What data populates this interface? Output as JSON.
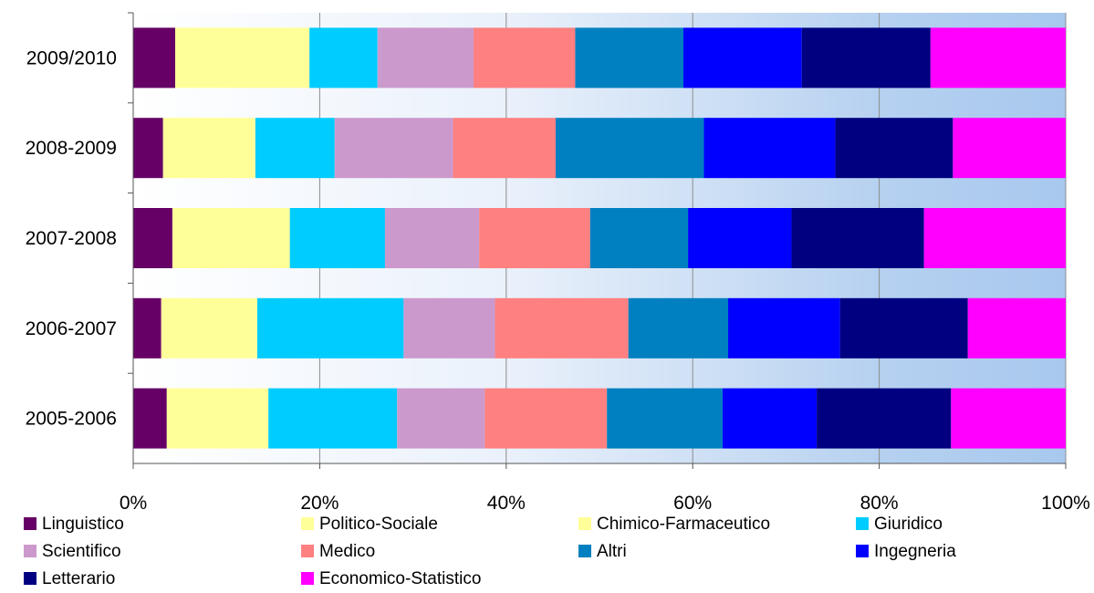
{
  "chart_data": {
    "type": "bar",
    "orientation": "horizontal",
    "stacked": "percent",
    "grid": true,
    "legend_position": "bottom",
    "categories": [
      "2009/2010",
      "2008-2009",
      "2007-2008",
      "2006-2007",
      "2005-2006"
    ],
    "x_ticks": [
      "0%",
      "20%",
      "40%",
      "60%",
      "80%",
      "100%"
    ],
    "xlim": [
      0,
      100
    ],
    "series": [
      {
        "name": "Linguistico",
        "color": "#660066",
        "values": [
          4.5,
          3.2,
          4.2,
          3.0,
          3.6
        ]
      },
      {
        "name": "Politico-Sociale",
        "color": "#FFFF99",
        "values": [
          14.4,
          9.9,
          12.6,
          10.3,
          10.9
        ]
      },
      {
        "name": "Chimico-Farmaceutico",
        "color": "#FFFF99",
        "values": [
          0,
          0,
          0,
          0,
          0
        ]
      },
      {
        "name": "Giuridico",
        "color": "#00CCFF",
        "values": [
          7.3,
          8.5,
          10.2,
          15.7,
          13.8
        ]
      },
      {
        "name": "Scientifico",
        "color": "#CC99CC",
        "values": [
          10.3,
          12.7,
          10.1,
          9.8,
          9.4
        ]
      },
      {
        "name": "Medico",
        "color": "#FF8080",
        "values": [
          10.9,
          11.0,
          11.9,
          14.3,
          13.1
        ]
      },
      {
        "name": "Altri",
        "color": "#0080C0",
        "values": [
          11.6,
          15.9,
          10.5,
          10.7,
          12.4
        ]
      },
      {
        "name": "Ingegneria",
        "color": "#0000FF",
        "values": [
          12.7,
          14.1,
          11.1,
          12.0,
          10.1
        ]
      },
      {
        "name": "Letterario",
        "color": "#000080",
        "values": [
          13.8,
          12.6,
          14.2,
          13.7,
          14.4
        ]
      },
      {
        "name": "Economico-Statistico",
        "color": "#FF00FF",
        "values": [
          14.5,
          12.1,
          15.2,
          10.5,
          12.3
        ]
      }
    ]
  }
}
